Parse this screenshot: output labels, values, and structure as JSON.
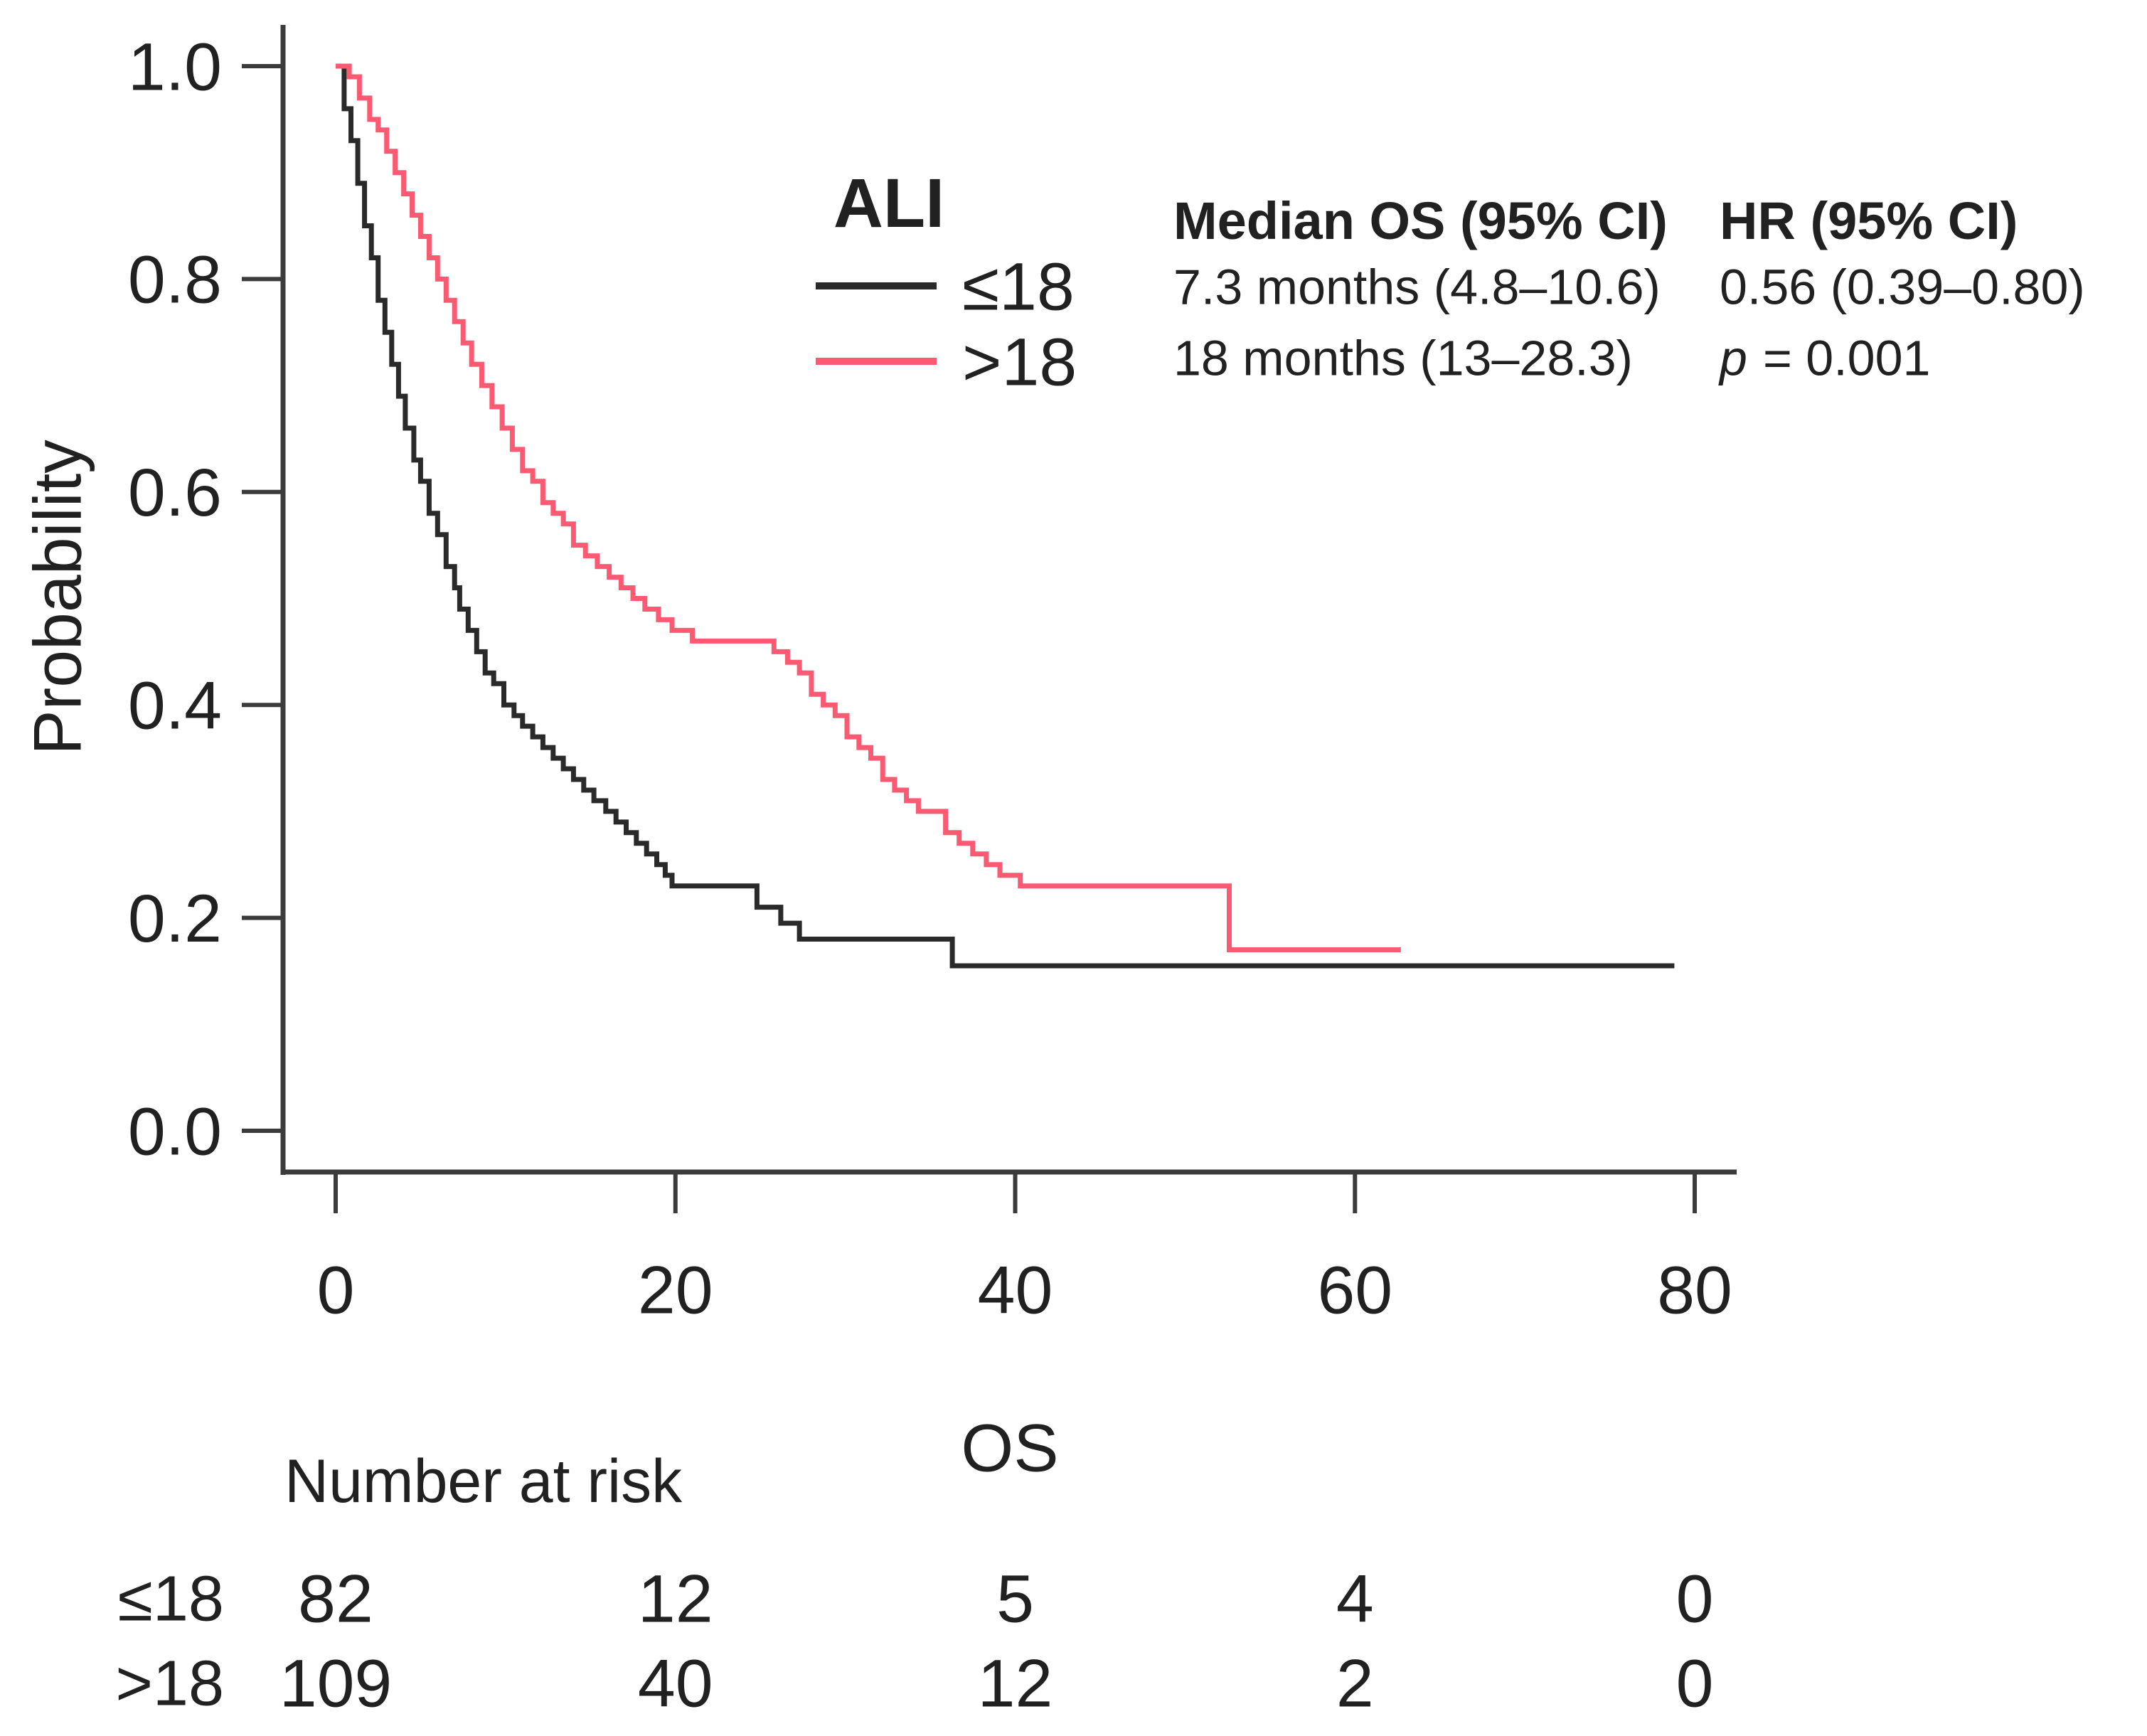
{
  "chart_data": {
    "type": "line",
    "subtype": "kaplan_meier_step",
    "title": "",
    "xlabel": "OS",
    "ylabel": "Probability",
    "xlim": [
      0,
      80
    ],
    "ylim": [
      0.0,
      1.0
    ],
    "grid": false,
    "x_ticks": [
      0,
      20,
      40,
      60,
      80
    ],
    "y_ticks": [
      {
        "value": 1.0,
        "label": "1.0"
      },
      {
        "value": 0.8,
        "label": "0.8"
      },
      {
        "value": 0.6,
        "label": "0.6"
      },
      {
        "value": 0.4,
        "label": "0.4"
      },
      {
        "value": 0.2,
        "label": "0.2"
      },
      {
        "value": 0.0,
        "label": "0.0"
      }
    ],
    "legend": {
      "title": "ALI",
      "position": "top-center",
      "entries": [
        {
          "label": "≤18",
          "color": "#2a2a2a"
        },
        {
          "label": ">18",
          "color": "#fb5a72"
        }
      ]
    },
    "series": [
      {
        "name": "≤18",
        "color": "#2a2a2a",
        "points": [
          [
            0,
            1.0
          ],
          [
            0.5,
            0.96
          ],
          [
            0.9,
            0.93
          ],
          [
            1.3,
            0.89
          ],
          [
            1.7,
            0.85
          ],
          [
            2.1,
            0.82
          ],
          [
            2.5,
            0.78
          ],
          [
            2.9,
            0.75
          ],
          [
            3.3,
            0.72
          ],
          [
            3.7,
            0.69
          ],
          [
            4.1,
            0.66
          ],
          [
            4.6,
            0.63
          ],
          [
            5.0,
            0.61
          ],
          [
            5.5,
            0.58
          ],
          [
            6.0,
            0.56
          ],
          [
            6.5,
            0.53
          ],
          [
            7.0,
            0.51
          ],
          [
            7.3,
            0.49
          ],
          [
            7.8,
            0.47
          ],
          [
            8.3,
            0.45
          ],
          [
            8.8,
            0.43
          ],
          [
            9.3,
            0.42
          ],
          [
            9.9,
            0.4
          ],
          [
            10.5,
            0.39
          ],
          [
            11.0,
            0.38
          ],
          [
            11.6,
            0.37
          ],
          [
            12.2,
            0.36
          ],
          [
            12.8,
            0.35
          ],
          [
            13.4,
            0.34
          ],
          [
            14.0,
            0.33
          ],
          [
            14.6,
            0.32
          ],
          [
            15.2,
            0.31
          ],
          [
            15.9,
            0.3
          ],
          [
            16.5,
            0.29
          ],
          [
            17.1,
            0.28
          ],
          [
            17.7,
            0.27
          ],
          [
            18.3,
            0.26
          ],
          [
            18.9,
            0.25
          ],
          [
            19.4,
            0.24
          ],
          [
            19.8,
            0.23
          ],
          [
            24.8,
            0.21
          ],
          [
            26.2,
            0.195
          ],
          [
            27.3,
            0.18
          ],
          [
            36.3,
            0.155
          ],
          [
            78.8,
            0.155
          ]
        ]
      },
      {
        "name": ">18",
        "color": "#fb5a72",
        "points": [
          [
            0,
            1.0
          ],
          [
            0.8,
            0.99
          ],
          [
            1.4,
            0.97
          ],
          [
            2.0,
            0.95
          ],
          [
            2.5,
            0.94
          ],
          [
            3.0,
            0.92
          ],
          [
            3.5,
            0.9
          ],
          [
            4.0,
            0.88
          ],
          [
            4.5,
            0.86
          ],
          [
            5.0,
            0.84
          ],
          [
            5.5,
            0.82
          ],
          [
            6.0,
            0.8
          ],
          [
            6.5,
            0.78
          ],
          [
            7.0,
            0.76
          ],
          [
            7.5,
            0.74
          ],
          [
            8.0,
            0.72
          ],
          [
            8.6,
            0.7
          ],
          [
            9.2,
            0.68
          ],
          [
            9.8,
            0.66
          ],
          [
            10.4,
            0.64
          ],
          [
            11.0,
            0.62
          ],
          [
            11.6,
            0.61
          ],
          [
            12.2,
            0.59
          ],
          [
            12.8,
            0.58
          ],
          [
            13.4,
            0.57
          ],
          [
            14.0,
            0.55
          ],
          [
            14.7,
            0.54
          ],
          [
            15.4,
            0.53
          ],
          [
            16.1,
            0.52
          ],
          [
            16.8,
            0.51
          ],
          [
            17.5,
            0.5
          ],
          [
            18.2,
            0.49
          ],
          [
            19.0,
            0.48
          ],
          [
            19.8,
            0.47
          ],
          [
            21.0,
            0.46
          ],
          [
            25.8,
            0.45
          ],
          [
            26.6,
            0.44
          ],
          [
            27.3,
            0.43
          ],
          [
            28.0,
            0.41
          ],
          [
            28.7,
            0.4
          ],
          [
            29.4,
            0.39
          ],
          [
            30.1,
            0.37
          ],
          [
            30.8,
            0.36
          ],
          [
            31.5,
            0.35
          ],
          [
            32.2,
            0.33
          ],
          [
            32.9,
            0.32
          ],
          [
            33.6,
            0.31
          ],
          [
            34.3,
            0.3
          ],
          [
            35.9,
            0.28
          ],
          [
            36.7,
            0.27
          ],
          [
            37.5,
            0.26
          ],
          [
            38.3,
            0.25
          ],
          [
            39.1,
            0.24
          ],
          [
            40.3,
            0.23
          ],
          [
            52.6,
            0.17
          ],
          [
            62.7,
            0.17
          ]
        ]
      }
    ],
    "annotations": {
      "median_col": {
        "header": "Median OS (95% CI)",
        "rows": [
          "7.3 months (4.8–10.6)",
          "18 months (13–28.3)"
        ]
      },
      "hr_col": {
        "header": "HR (95% CI)",
        "hr_value": "0.56  (0.39–0.80)",
        "p_label": "p",
        "p_value": "= 0.001"
      }
    },
    "number_at_risk": {
      "title": "Number at risk",
      "time_points": [
        0,
        20,
        40,
        60,
        80
      ],
      "rows": [
        {
          "label": "≤18",
          "counts": [
            "82",
            "12",
            "5",
            "4",
            "0"
          ]
        },
        {
          "label": ">18",
          "counts": [
            "109",
            "40",
            "12",
            "2",
            "0"
          ]
        }
      ]
    }
  }
}
